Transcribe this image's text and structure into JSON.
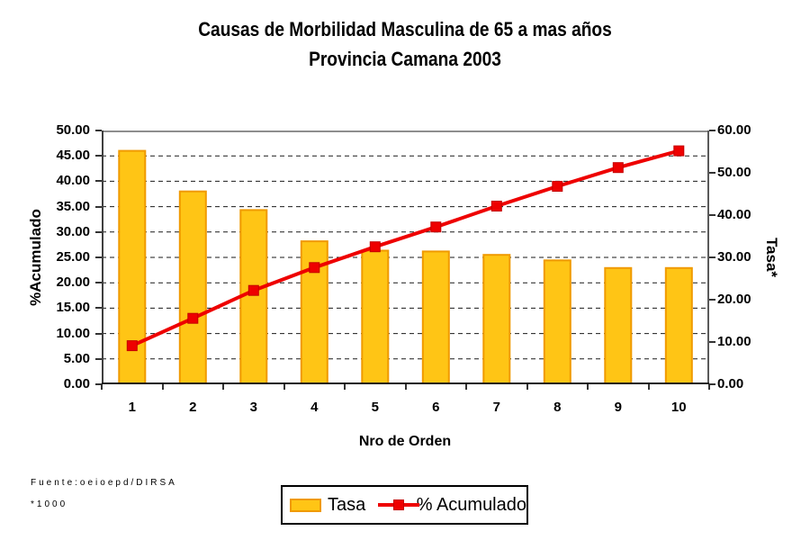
{
  "title": {
    "line1": "Causas de Morbilidad Masculina de 65 a mas años",
    "line2": "Provincia Camana 2003"
  },
  "chart_data": {
    "type": "bar",
    "subtype": "pareto (bars + cumulative line)",
    "title": "Causas de Morbilidad Masculina de 65 a mas años - Provincia Camana 2003",
    "categories": [
      "1",
      "2",
      "3",
      "4",
      "5",
      "6",
      "7",
      "8",
      "9",
      "10"
    ],
    "series": [
      {
        "name": "Tasa",
        "type": "bar",
        "axis": "right",
        "values": [
          55.2,
          45.6,
          41.2,
          33.8,
          31.6,
          31.4,
          30.6,
          29.3,
          27.5,
          27.5
        ]
      },
      {
        "name": "% Acumulado",
        "type": "line",
        "axis": "left",
        "values": [
          7.6,
          13.0,
          18.5,
          23.0,
          27.1,
          31.0,
          35.1,
          39.0,
          42.7,
          46.0
        ]
      }
    ],
    "xlabel": "Nro de Orden",
    "ylabel_left": "%Acumulado",
    "ylabel_right": "Tasa*",
    "ylim_left": [
      0,
      50
    ],
    "ytick_step_left": 5,
    "ylim_right": [
      0,
      60
    ],
    "ytick_step_right": 10,
    "grid": "horizontal dashed",
    "legend_position": "bottom-center"
  },
  "axes": {
    "left_ticks": [
      "50.00",
      "45.00",
      "40.00",
      "35.00",
      "30.00",
      "25.00",
      "20.00",
      "15.00",
      "10.00",
      "5.00",
      "0.00"
    ],
    "right_ticks": [
      "60.00",
      "50.00",
      "40.00",
      "30.00",
      "20.00",
      "10.00",
      "0.00"
    ],
    "x_ticks": [
      "1",
      "2",
      "3",
      "4",
      "5",
      "6",
      "7",
      "8",
      "9",
      "10"
    ],
    "xlabel": "Nro de Orden",
    "ylabel_left": "%Acumulado",
    "ylabel_right": "Tasa*"
  },
  "legend": {
    "items": [
      {
        "label": "Tasa",
        "swatch": "bar"
      },
      {
        "label": "% Acumulado",
        "swatch": "line-marker"
      }
    ]
  },
  "footer": {
    "source": "Fuente:oeioepd/DIRSA",
    "note": "*1000"
  },
  "colors": {
    "bar_fill": "#FFC515",
    "bar_border": "#F09A00",
    "line": "#EE0000",
    "marker_border": "#C40000",
    "grid": "#1A1A1A",
    "border_top": "#8E8E8E",
    "border_right": "#5A5A5A",
    "border_left": "#3F3F3F",
    "border_bottom": "#1A1A1A"
  }
}
